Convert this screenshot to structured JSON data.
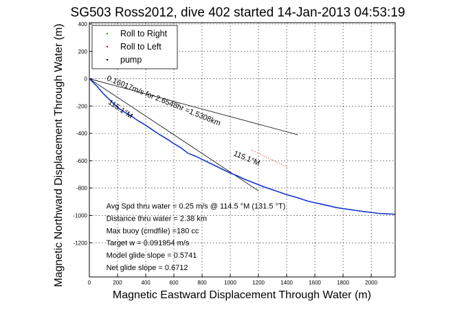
{
  "chart_data": {
    "type": "line",
    "title": "SG503 Ross2012, dive 402 started 14-Jan-2013 04:53:19",
    "xlabel": "Magnetic Eastward Displacement Through Water (m)",
    "ylabel": "Magnetic Northward Displacement Through Water (m)",
    "xlim": [
      0,
      2170
    ],
    "ylim": [
      -1450,
      410
    ],
    "x_ticks": [
      0,
      200,
      400,
      600,
      800,
      1000,
      1200,
      1400,
      1600,
      1800,
      2000
    ],
    "y_ticks": [
      400,
      200,
      0,
      -200,
      -400,
      -600,
      -800,
      -1000,
      -1200
    ],
    "grid": true,
    "legend_position": "top-left",
    "legend": [
      {
        "label": "Roll to Right",
        "color": "#00aa00"
      },
      {
        "label": "Roll to Left",
        "color": "#dd0000"
      },
      {
        "label": "pump",
        "color": "#000000"
      }
    ],
    "series": [
      {
        "color": "#1133cc",
        "x": [
          0,
          50,
          100,
          150,
          200,
          250,
          300,
          350,
          400,
          450,
          500,
          550,
          600,
          650,
          700,
          750,
          800,
          850,
          900,
          950,
          1000,
          1050,
          1100,
          1150,
          1200,
          1250,
          1300,
          1350,
          1400,
          1450,
          1500,
          1550,
          1600,
          1650,
          1700,
          1750,
          1800,
          1850,
          1900,
          1950,
          2000,
          2050,
          2100,
          2150,
          2170
        ],
        "y": [
          0,
          -50,
          -110,
          -160,
          -210,
          -245,
          -275,
          -310,
          -340,
          -375,
          -410,
          -440,
          -475,
          -505,
          -545,
          -565,
          -590,
          -615,
          -640,
          -665,
          -690,
          -710,
          -735,
          -755,
          -775,
          -795,
          -812,
          -830,
          -848,
          -862,
          -878,
          -895,
          -907,
          -918,
          -930,
          -942,
          -950,
          -957,
          -965,
          -972,
          -978,
          -985,
          -988,
          -990,
          -992
        ]
      },
      {
        "color": "#dd0000",
        "x": [
          1150,
          1180,
          1210,
          1240,
          1270,
          1300,
          1330,
          1360,
          1390,
          1410
        ],
        "y": [
          -520,
          -535,
          -550,
          -565,
          -580,
          -595,
          -610,
          -625,
          -640,
          -650
        ]
      }
    ],
    "reference_lines": [
      {
        "color": "#000000",
        "x": [
          0,
          1480
        ],
        "y": [
          0,
          -410
        ]
      },
      {
        "color": "#000000",
        "x": [
          0,
          1200
        ],
        "y": [
          0,
          -820
        ]
      }
    ],
    "annotations": [
      {
        "text": "0.16017m/s for 2.6548hr =1.5308km",
        "x": 120,
        "y": -10,
        "angle": 22
      },
      {
        "text": "115.1°M",
        "x": 130,
        "y": -180,
        "angle": 34
      },
      {
        "text": "115.1°M",
        "x": 1020,
        "y": -560,
        "angle": 22
      },
      {
        "text": "Avg Spd thru water = 0.25 m/s @ 114.5   °M (131.5 °T)",
        "x": 120,
        "y": -950,
        "angle": 0
      },
      {
        "text": "Distance thru water = 2.38 km",
        "x": 120,
        "y": -1040,
        "angle": 0
      },
      {
        "text": "Max buoy (cmdfile) =180 cc",
        "x": 120,
        "y": -1130,
        "angle": 0
      },
      {
        "text": "Target w = 0.091954 m/s",
        "x": 120,
        "y": -1220,
        "angle": 0
      },
      {
        "text": "Model glide slope = 0.5741",
        "x": 120,
        "y": -1310,
        "angle": 0
      },
      {
        "text": "Net glide slope = 0.6712",
        "x": 120,
        "y": -1400,
        "angle": 0
      }
    ]
  }
}
